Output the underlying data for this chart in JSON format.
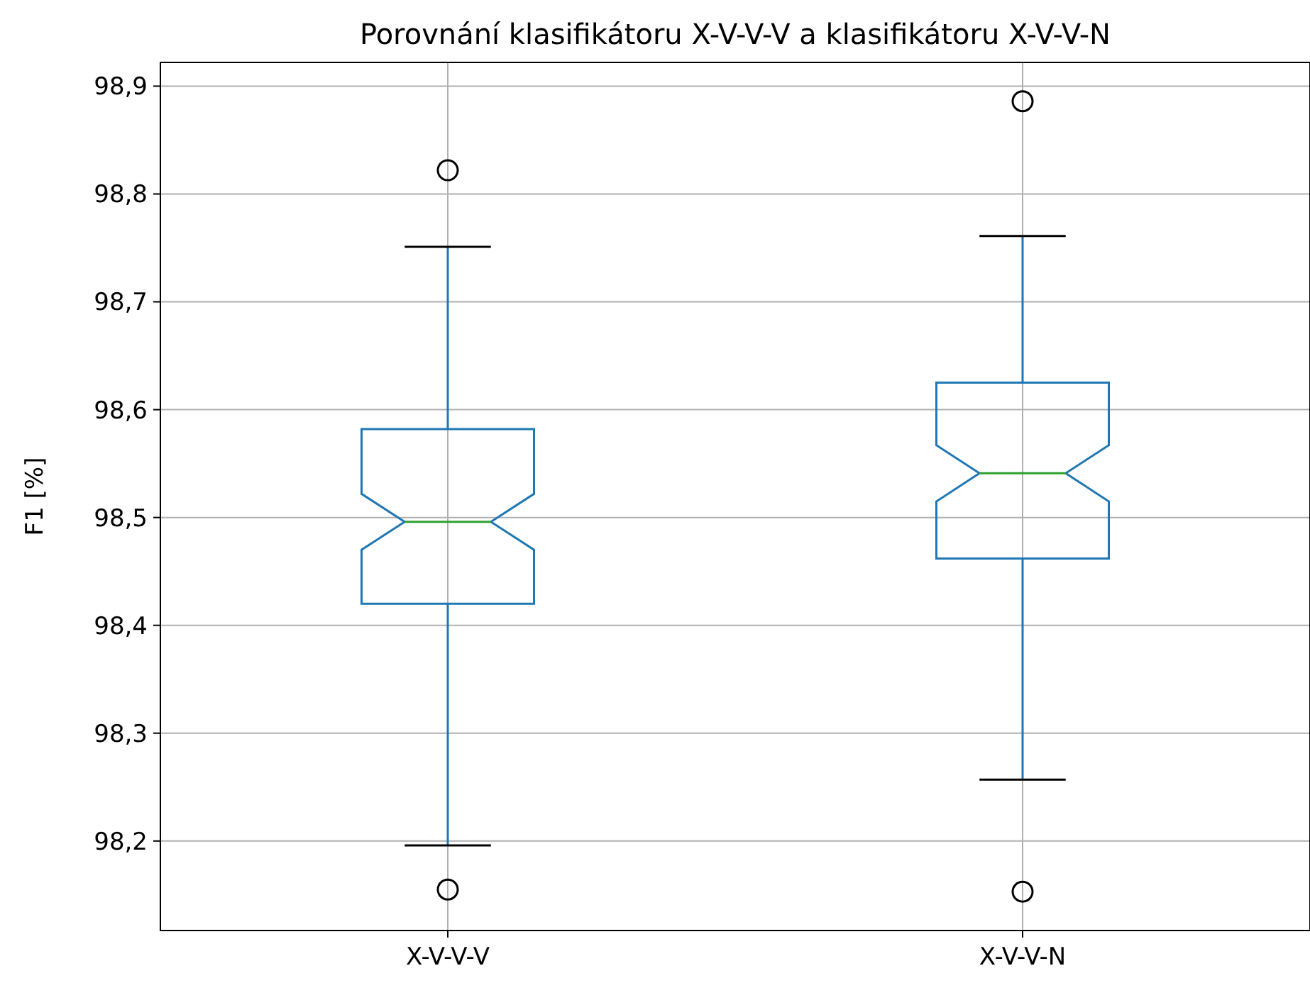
{
  "chart_data": {
    "type": "box",
    "title": "Porovnání klasifikátoru X-V-V-V a klasifikátoru X-V-V-N",
    "ylabel": "F1 [%]",
    "categories": [
      "X-V-V-V",
      "X-V-V-N"
    ],
    "boxes": [
      {
        "low": 98.196,
        "q1": 98.42,
        "median": 98.496,
        "q3": 98.582,
        "high": 98.751,
        "outliers": [
          98.822,
          98.155
        ]
      },
      {
        "low": 98.257,
        "q1": 98.462,
        "median": 98.541,
        "q3": 98.625,
        "high": 98.761,
        "outliers": [
          98.886,
          98.153
        ]
      }
    ],
    "color": "#1f77b4",
    "ylim": [
      98.117,
      98.922
    ],
    "yticks": [
      {
        "value": 98.2,
        "label": "98,2"
      },
      {
        "value": 98.3,
        "label": "98,3"
      },
      {
        "value": 98.4,
        "label": "98,4"
      },
      {
        "value": 98.5,
        "label": "98,5"
      },
      {
        "value": 98.6,
        "label": "98,6"
      },
      {
        "value": 98.7,
        "label": "98,7"
      },
      {
        "value": 98.8,
        "label": "98,8"
      },
      {
        "value": 98.9,
        "label": "98,9"
      }
    ],
    "grid": true
  }
}
